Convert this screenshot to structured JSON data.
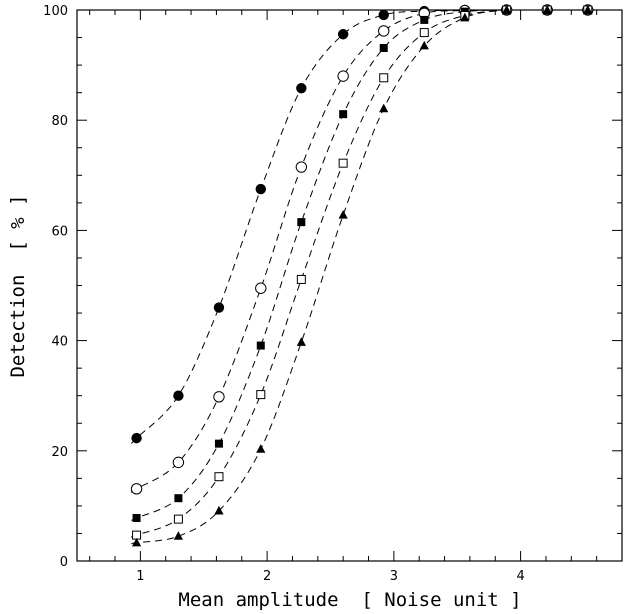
{
  "chart_data": {
    "type": "scatter",
    "title": "",
    "xlabel": "Mean amplitude  [ Noise unit ]",
    "ylabel": "Detection  [ % ]",
    "xlim": [
      0.5,
      4.8
    ],
    "ylim": [
      0,
      100
    ],
    "x_ticks": [
      1,
      2,
      3,
      4
    ],
    "y_ticks": [
      0,
      20,
      40,
      60,
      80,
      100
    ],
    "grid": false,
    "legend": "none",
    "fit_curves": "dashed",
    "x": [
      0.97,
      1.3,
      1.62,
      1.95,
      2.27,
      2.6,
      2.92,
      3.24,
      3.56,
      3.89,
      4.21,
      4.53
    ],
    "series": [
      {
        "marker": "filled-circle",
        "values": [
          22.3,
          30.0,
          46.0,
          67.5,
          85.8,
          95.6,
          99.1,
          99.8,
          100,
          100,
          100,
          100
        ]
      },
      {
        "marker": "open-circle",
        "values": [
          13.1,
          17.9,
          29.8,
          49.5,
          71.5,
          88.0,
          96.2,
          99.4,
          99.9,
          100,
          100,
          100
        ]
      },
      {
        "marker": "filled-square",
        "values": [
          7.8,
          11.4,
          21.3,
          39.1,
          61.5,
          81.1,
          93.1,
          98.2,
          99.7,
          100,
          100,
          100
        ]
      },
      {
        "marker": "open-square",
        "values": [
          4.7,
          7.6,
          15.3,
          30.2,
          51.1,
          72.2,
          87.7,
          95.9,
          99.0,
          100,
          100,
          100
        ]
      },
      {
        "marker": "filled-triangle",
        "values": [
          3.3,
          4.5,
          9.1,
          20.3,
          39.7,
          62.8,
          82.1,
          93.5,
          98.6,
          100,
          100,
          100
        ]
      }
    ]
  }
}
